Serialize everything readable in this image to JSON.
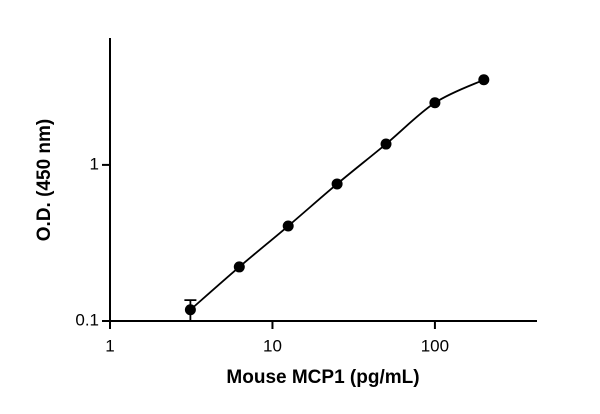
{
  "chart_data": {
    "type": "scatter",
    "xlabel": "Mouse MCP1 (pg/mL)",
    "ylabel": "O.D. (450 nm)",
    "x": [
      3.125,
      6.25,
      12.5,
      25,
      50,
      100,
      200
    ],
    "series": [
      {
        "color": "#000000",
        "values": [
          0.118,
          0.222,
          0.406,
          0.755,
          1.36,
          2.5,
          3.51
        ],
        "errors": [
          0.018,
          null,
          null,
          null,
          null,
          null,
          null
        ]
      }
    ],
    "log_x": true,
    "log_y": true,
    "xlim": [
      1,
      425
    ],
    "ylim": [
      0.1,
      6.5
    ],
    "xticks": [
      1,
      10,
      100
    ],
    "yticks": [
      0.1,
      1
    ],
    "curve": true
  }
}
